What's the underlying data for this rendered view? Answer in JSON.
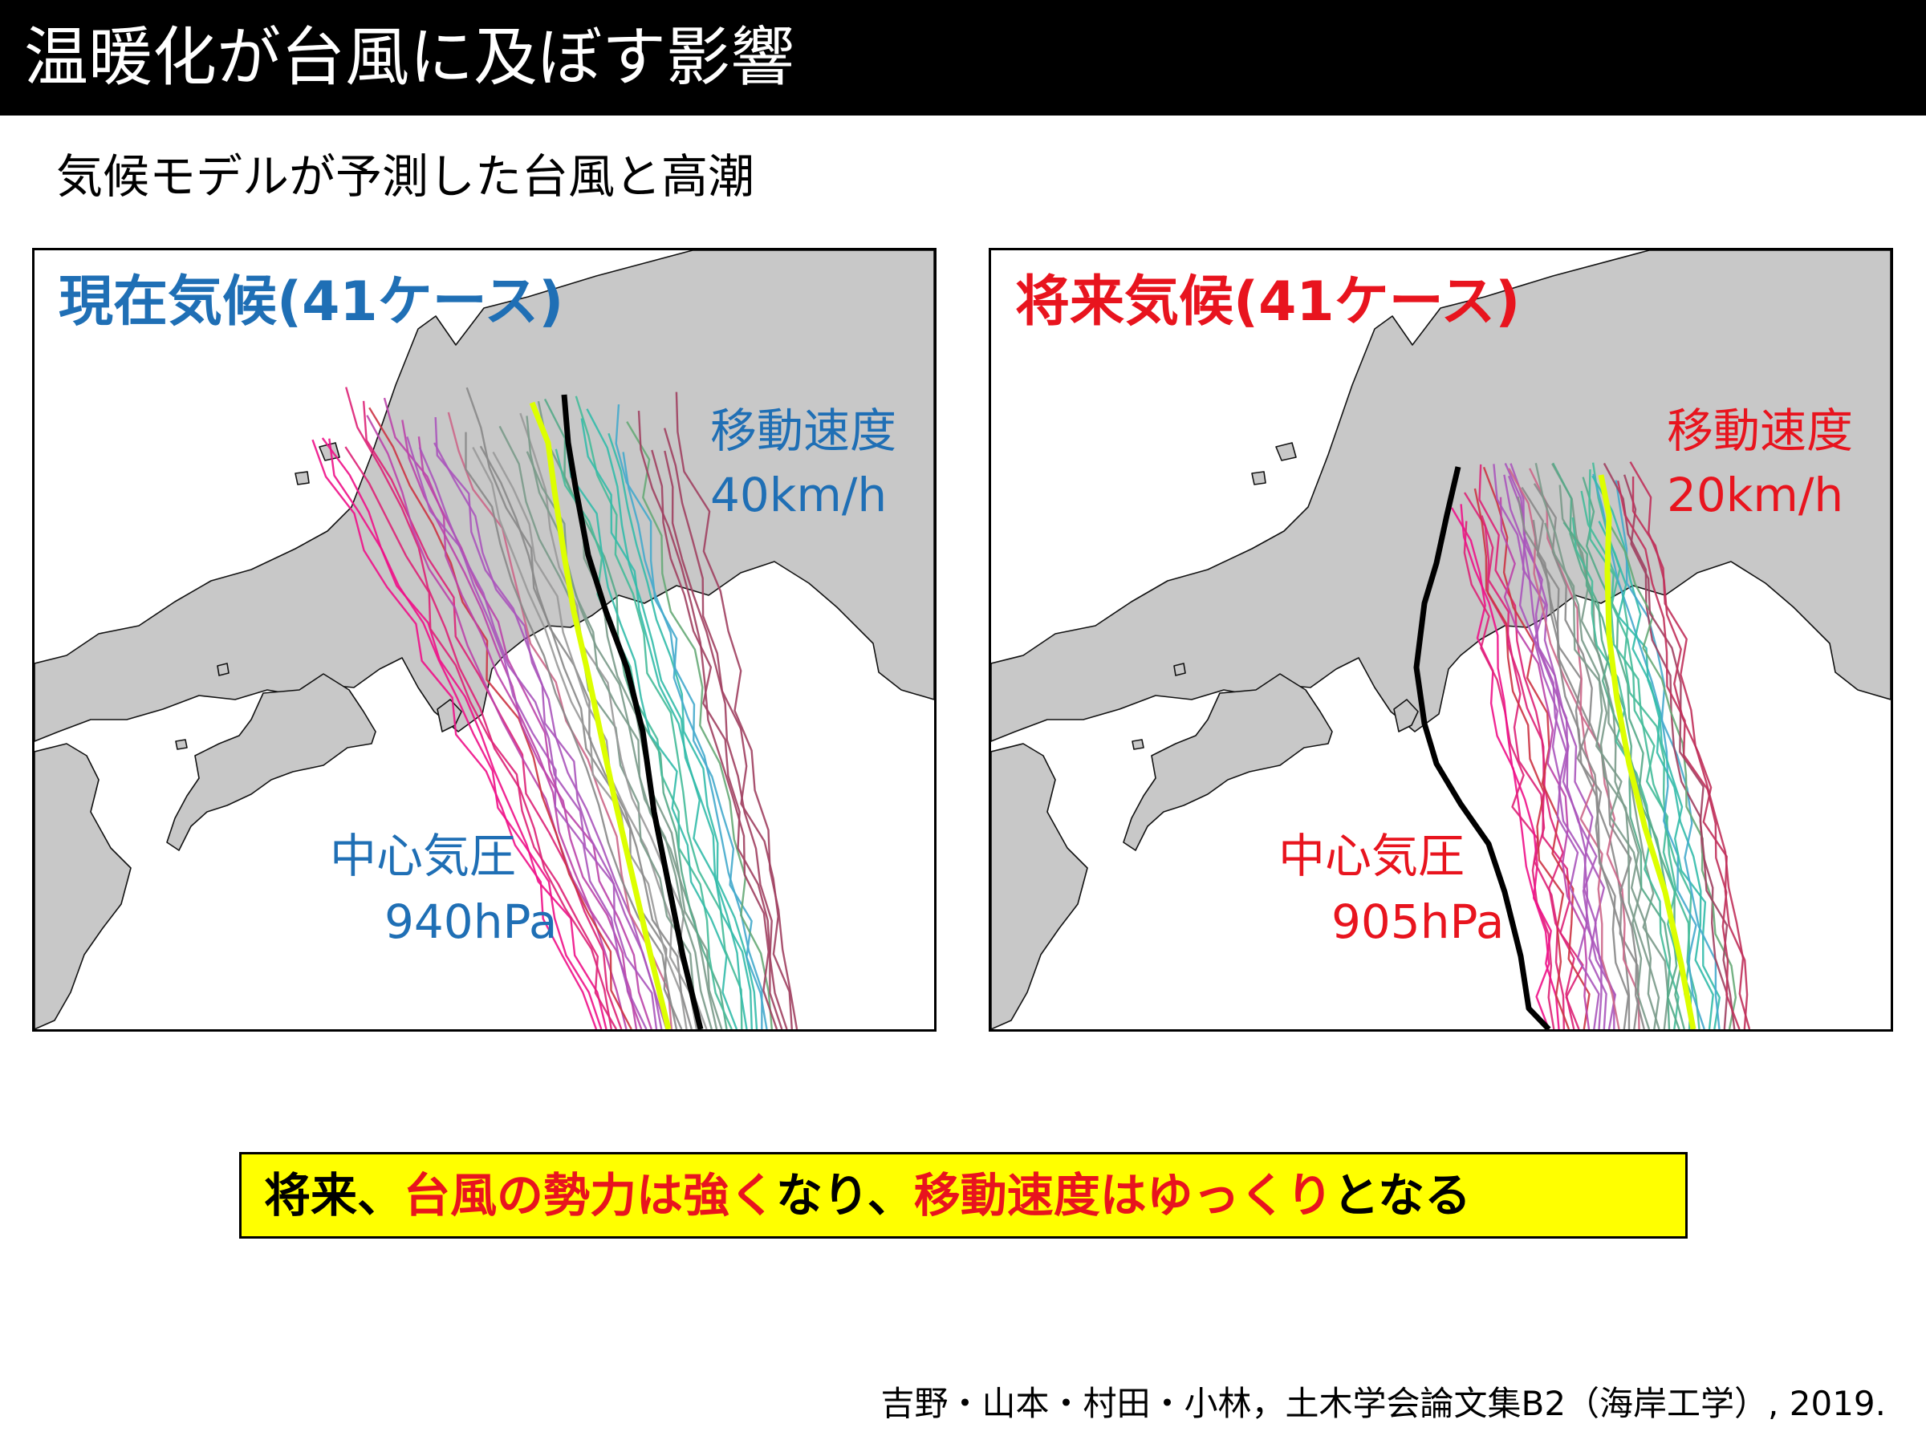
{
  "title": "温暖化が台風に及ぼす影響",
  "subtitle": "気候モデルが予測した台風と高潮",
  "colors": {
    "present_accent": "#1f6fb5",
    "future_accent": "#e8141e",
    "land": "#c8c8c8",
    "conclusion_bg": "#ffff00",
    "track_highlight": "#ddff00",
    "track_mean": "#000000"
  },
  "panels": {
    "present": {
      "label": "現在気候(41ケース)",
      "speed_label": "移動速度",
      "speed_value": "40km/h",
      "pressure_label": "中心気圧",
      "pressure_value": "940hPa"
    },
    "future": {
      "label": "将来気候(41ケース)",
      "speed_label": "移動速度",
      "speed_value": "20km/h",
      "pressure_label": "中心気圧",
      "pressure_value": "905hPa"
    }
  },
  "conclusion": {
    "part1": "将来、",
    "part2": "台風の勢力は強く",
    "part3": "なり、",
    "part4": "移動速度はゆっくり",
    "part5": "となる"
  },
  "citation": "吉野・山本・村田・小林，土木学会論文集B2（海岸工学）, 2019."
}
